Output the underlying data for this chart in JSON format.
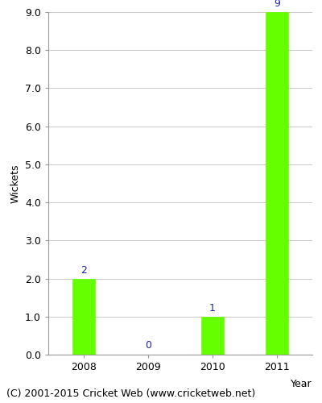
{
  "years": [
    "2008",
    "2009",
    "2010",
    "2011"
  ],
  "values": [
    2,
    0,
    1,
    9
  ],
  "bar_color": "#66ff00",
  "bar_edge_color": "#66ff00",
  "label_color": "#2222aa",
  "xlabel": "Year",
  "ylabel": "Wickets",
  "ylim": [
    0.0,
    9.0
  ],
  "yticks": [
    0.0,
    1.0,
    2.0,
    3.0,
    4.0,
    5.0,
    6.0,
    7.0,
    8.0,
    9.0
  ],
  "background_color": "#ffffff",
  "plot_bg_color": "#ffffff",
  "footer": "(C) 2001-2015 Cricket Web (www.cricketweb.net)",
  "grid_color": "#cccccc",
  "label_fontsize": 9,
  "axis_fontsize": 9,
  "footer_fontsize": 9,
  "bar_width": 0.35
}
